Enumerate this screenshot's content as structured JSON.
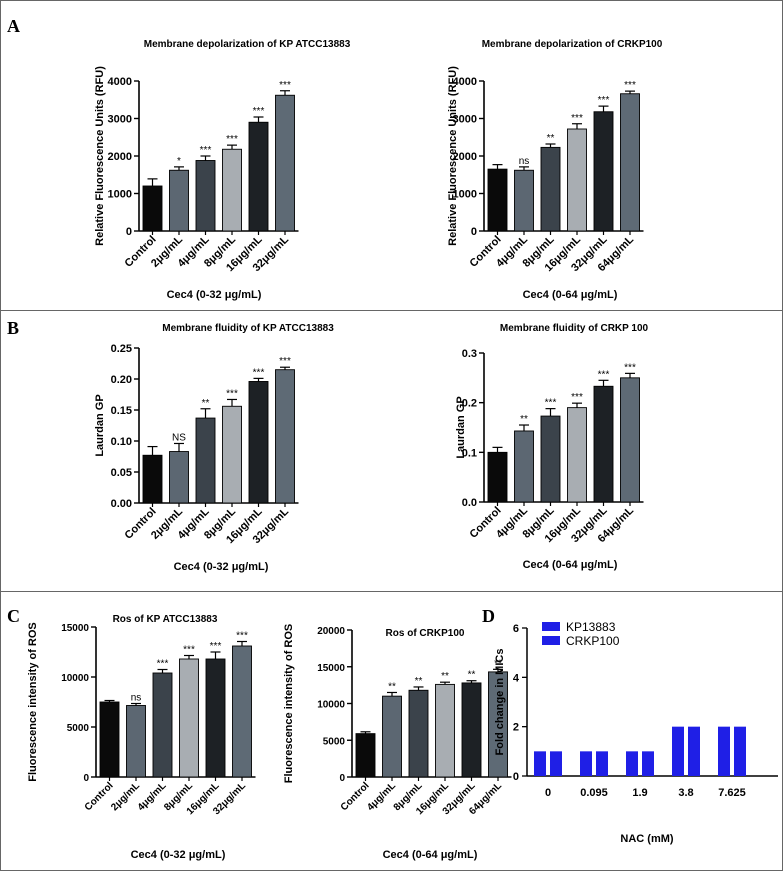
{
  "panel_labels": {
    "A": "A",
    "B": "B",
    "C": "C",
    "D": "D"
  },
  "colors": {
    "bar_palette": [
      "#0a0a0a",
      "#5c6772",
      "#3b434b",
      "#a8adb2",
      "#1d2125",
      "#5e6a75"
    ],
    "nac_kp": "#1f1fe6",
    "nac_crkp": "#1f1fe6"
  },
  "chart_data": [
    {
      "id": "a1",
      "type": "bar",
      "title": "Membrane depolarization of KP ATCC13883",
      "xlabel": "Cec4 (0-32 μg/mL)",
      "ylabel": "Relative Fluorescence Units (RFU)",
      "categories": [
        "Control",
        "2μg/mL",
        "4μg/mL",
        "8μg/mL",
        "16μg/mL",
        "32μg/mL"
      ],
      "values": [
        1200,
        1620,
        1880,
        2180,
        2900,
        3620
      ],
      "errors": [
        190,
        90,
        120,
        110,
        140,
        120
      ],
      "significance": [
        "",
        "*",
        "***",
        "***",
        "***",
        "***"
      ],
      "ylim": [
        0,
        4000
      ],
      "yticks": [
        "0",
        "1000",
        "2000",
        "3000",
        "4000"
      ]
    },
    {
      "id": "a2",
      "type": "bar",
      "title": "Membrane depolarization of CRKP100",
      "xlabel": "Cec4 (0-64 μg/mL)",
      "ylabel": "Relative Fluorescence Units (RFU)",
      "categories": [
        "Control",
        "4μg/mL",
        "8μg/mL",
        "16μg/mL",
        "32μg/mL",
        "64μg/mL"
      ],
      "values": [
        1650,
        1620,
        2230,
        2720,
        3180,
        3660
      ],
      "errors": [
        120,
        90,
        90,
        140,
        150,
        70
      ],
      "significance": [
        "",
        "ns",
        "**",
        "***",
        "***",
        "***"
      ],
      "ylim": [
        0,
        4000
      ],
      "yticks": [
        "0",
        "1000",
        "2000",
        "3000",
        "4000"
      ]
    },
    {
      "id": "b1",
      "type": "bar",
      "title": "Membrane fluidity of KP ATCC13883",
      "xlabel": "Cec4 (0-32 μg/mL)",
      "ylabel": "Laurdan GP",
      "categories": [
        "Control",
        "2μg/mL",
        "4μg/mL",
        "8μg/mL",
        "16μg/mL",
        "32μg/mL"
      ],
      "values": [
        0.077,
        0.083,
        0.137,
        0.156,
        0.196,
        0.215
      ],
      "errors": [
        0.014,
        0.013,
        0.015,
        0.011,
        0.005,
        0.004
      ],
      "significance": [
        "",
        "NS",
        "**",
        "***",
        "***",
        "***"
      ],
      "ylim": [
        0,
        0.25
      ],
      "yticks": [
        "0.00",
        "0.05",
        "0.10",
        "0.15",
        "0.20",
        "0.25"
      ]
    },
    {
      "id": "b2",
      "type": "bar",
      "title": "Membrane fluidity of CRKP 100",
      "xlabel": "Cec4 (0-64 μg/mL)",
      "ylabel": "Laurdan GP",
      "categories": [
        "Control",
        "4μg/mL",
        "8μg/mL",
        "16μg/mL",
        "32μg/mL",
        "64μg/mL"
      ],
      "values": [
        0.1,
        0.143,
        0.173,
        0.19,
        0.233,
        0.25
      ],
      "errors": [
        0.01,
        0.012,
        0.015,
        0.009,
        0.012,
        0.009
      ],
      "significance": [
        "",
        "**",
        "***",
        "***",
        "***",
        "***"
      ],
      "ylim": [
        0,
        0.3
      ],
      "yticks": [
        "0.0",
        "0.1",
        "0.2",
        "0.3"
      ]
    },
    {
      "id": "c1",
      "type": "bar",
      "title": "Ros of KP ATCC13883",
      "xlabel": "Cec4 (0-32 μg/mL)",
      "ylabel": "Fluorescence intensity of ROS",
      "categories": [
        "Control",
        "2μg/mL",
        "4μg/mL",
        "8μg/mL",
        "16μg/mL",
        "32μg/mL"
      ],
      "values": [
        7500,
        7150,
        10400,
        11800,
        11800,
        13100
      ],
      "errors": [
        150,
        200,
        350,
        350,
        700,
        450
      ],
      "significance": [
        "",
        "ns",
        "***",
        "***",
        "***",
        "***"
      ],
      "ylim": [
        0,
        15000
      ],
      "yticks": [
        "0",
        "5000",
        "10000",
        "15000"
      ]
    },
    {
      "id": "c2",
      "type": "bar",
      "title": "Ros of CRKP100",
      "xlabel": "Cec4 (0-64 μg/mL)",
      "ylabel": "Fluorescence intensity of ROS",
      "categories": [
        "Control",
        "4μg/mL",
        "8μg/mL",
        "16μg/mL",
        "32μg/mL",
        "64μg/mL"
      ],
      "values": [
        5900,
        11000,
        11800,
        12600,
        12800,
        14300
      ],
      "errors": [
        250,
        500,
        450,
        300,
        300,
        350
      ],
      "significance": [
        "",
        "**",
        "**",
        "**",
        "**",
        "**"
      ],
      "ylim": [
        0,
        20000
      ],
      "yticks": [
        "0",
        "5000",
        "10000",
        "15000",
        "20000"
      ]
    },
    {
      "id": "d",
      "type": "bar",
      "title": "",
      "xlabel": "NAC (mM)",
      "ylabel": "Fold change in MICs",
      "categories": [
        "0",
        "0.095",
        "1.9",
        "3.8",
        "7.625"
      ],
      "series": [
        {
          "name": "KP13883",
          "values": [
            1,
            1,
            1,
            2,
            2
          ]
        },
        {
          "name": "CRKP100",
          "values": [
            1,
            1,
            1,
            2,
            2
          ]
        }
      ],
      "ylim": [
        0,
        6
      ],
      "yticks": [
        "0",
        "2",
        "4",
        "6"
      ],
      "legend": "top-left"
    }
  ]
}
